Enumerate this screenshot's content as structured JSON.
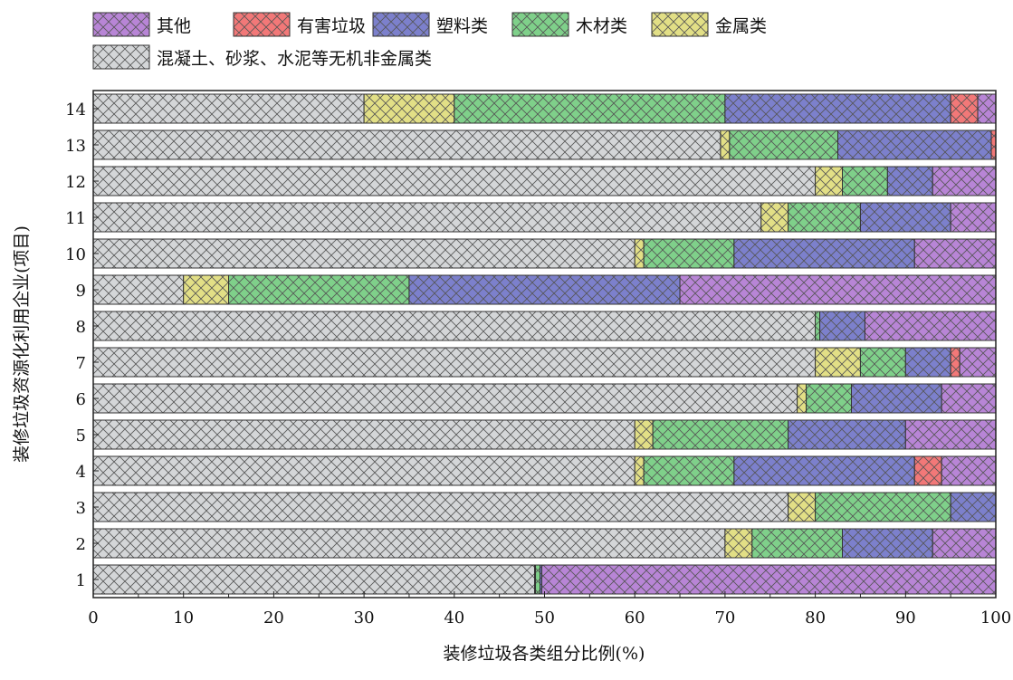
{
  "chart_data": {
    "type": "bar",
    "orientation": "horizontal",
    "stacked": true,
    "title": "",
    "xlabel": "装修垃圾各类组分比例(%)",
    "ylabel": "装修垃圾资源化利用企业(项目)",
    "xlim": [
      0,
      100
    ],
    "xticks": [
      "0",
      "10",
      "20",
      "30",
      "40",
      "50",
      "60",
      "70",
      "80",
      "90",
      "100"
    ],
    "categories": [
      "1",
      "2",
      "3",
      "4",
      "5",
      "6",
      "7",
      "8",
      "9",
      "10",
      "11",
      "12",
      "13",
      "14"
    ],
    "legend_position": "top",
    "series": [
      {
        "name": "混凝土、砂浆、水泥等无机非金属类",
        "color": "#d4d6d8",
        "values": [
          48.9,
          70,
          77,
          60,
          60,
          78,
          80,
          80,
          10,
          60,
          74,
          80,
          69.5,
          30
        ]
      },
      {
        "name": "金属类",
        "color": "#e2df86",
        "values": [
          0.1,
          3,
          3,
          1,
          2,
          1,
          5,
          0,
          5,
          1,
          3,
          3,
          1,
          10
        ]
      },
      {
        "name": "木材类",
        "color": "#7fd08a",
        "values": [
          0.5,
          10,
          15,
          10,
          15,
          5,
          5,
          0.5,
          20,
          10,
          8,
          5,
          12,
          30
        ]
      },
      {
        "name": "塑料类",
        "color": "#7c80cc",
        "values": [
          0.2,
          10,
          5,
          20,
          13,
          10,
          5,
          5,
          30,
          20,
          10,
          5,
          17,
          25
        ]
      },
      {
        "name": "有害垃圾",
        "color": "#f27878",
        "values": [
          0,
          0,
          0,
          3,
          0,
          0,
          1,
          0,
          0,
          0,
          0,
          0,
          0.5,
          3
        ]
      },
      {
        "name": "其他",
        "color": "#b885d6",
        "values": [
          50.3,
          7,
          0,
          6,
          10,
          6,
          4,
          14.5,
          35,
          9,
          5,
          7,
          0,
          2
        ]
      }
    ],
    "legend_order": [
      "其他",
      "有害垃圾",
      "塑料类",
      "木材类",
      "金属类",
      "混凝土、砂浆、水泥等无机非金属类"
    ]
  }
}
